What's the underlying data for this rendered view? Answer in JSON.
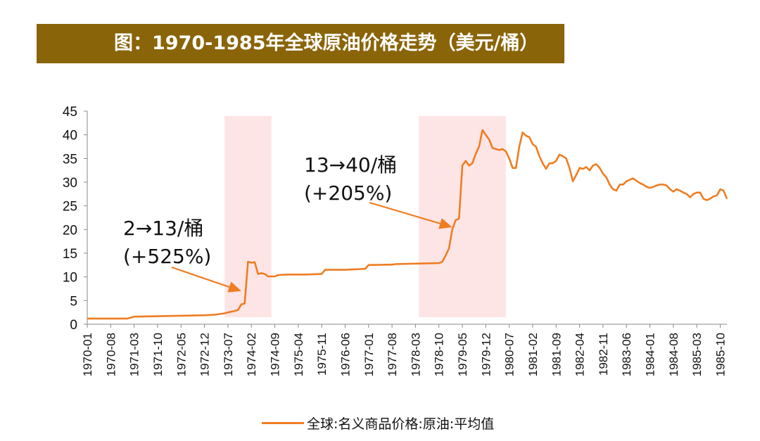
{
  "title": "图：1970-1985年全球原油价格走势（美元/桶）",
  "colors": {
    "banner": "#8a6408",
    "line": "#ef7d22",
    "shade": "#fde5e6",
    "arrow": "#ef7d22"
  },
  "chart_data": {
    "type": "line",
    "title": "图：1970-1985年全球原油价格走势（美元/桶）",
    "xlabel": "",
    "ylabel": "",
    "ylim": [
      0,
      45
    ],
    "yticks": [
      0,
      5,
      10,
      15,
      20,
      25,
      30,
      35,
      40,
      45
    ],
    "xrange": [
      "1970-01",
      "1985-12"
    ],
    "xticks": [
      "1970-01",
      "1970-08",
      "1971-03",
      "1971-10",
      "1972-05",
      "1972-12",
      "1973-07",
      "1974-02",
      "1974-09",
      "1975-04",
      "1975-11",
      "1976-06",
      "1977-01",
      "1977-08",
      "1978-03",
      "1978-10",
      "1979-05",
      "1979-12",
      "1980-07",
      "1981-02",
      "1981-09",
      "1982-04",
      "1982-11",
      "1983-06",
      "1984-01",
      "1984-08",
      "1985-03",
      "1985-10"
    ],
    "legend": "bottom-center",
    "grid": false,
    "series": [
      {
        "name": "全球:名义商品价格:原油:平均值",
        "color": "#ef7d22",
        "points": [
          [
            "1970-01",
            1.2
          ],
          [
            "1971-01",
            1.2
          ],
          [
            "1971-03",
            1.6
          ],
          [
            "1971-10",
            1.7
          ],
          [
            "1972-05",
            1.8
          ],
          [
            "1972-12",
            1.9
          ],
          [
            "1973-03",
            2.0
          ],
          [
            "1973-06",
            2.3
          ],
          [
            "1973-07",
            2.5
          ],
          [
            "1973-09",
            2.8
          ],
          [
            "1973-10",
            3.0
          ],
          [
            "1973-11",
            4.2
          ],
          [
            "1973-12",
            4.4
          ],
          [
            "1974-01",
            13.2
          ],
          [
            "1974-02",
            13.0
          ],
          [
            "1974-03",
            13.1
          ],
          [
            "1974-04",
            10.6
          ],
          [
            "1974-05",
            10.8
          ],
          [
            "1974-06",
            10.6
          ],
          [
            "1974-07",
            10.1
          ],
          [
            "1974-09",
            10.1
          ],
          [
            "1974-10",
            10.4
          ],
          [
            "1975-01",
            10.5
          ],
          [
            "1975-06",
            10.5
          ],
          [
            "1975-11",
            10.6
          ],
          [
            "1975-12",
            11.5
          ],
          [
            "1976-06",
            11.5
          ],
          [
            "1976-12",
            11.7
          ],
          [
            "1977-01",
            12.5
          ],
          [
            "1977-08",
            12.6
          ],
          [
            "1977-09",
            12.7
          ],
          [
            "1978-03",
            12.8
          ],
          [
            "1978-10",
            12.9
          ],
          [
            "1978-11",
            13.2
          ],
          [
            "1978-12",
            14.5
          ],
          [
            "1979-01",
            16.0
          ],
          [
            "1979-02",
            20.0
          ],
          [
            "1979-03",
            22.0
          ],
          [
            "1979-04",
            22.3
          ],
          [
            "1979-05",
            33.5
          ],
          [
            "1979-06",
            34.5
          ],
          [
            "1979-07",
            33.5
          ],
          [
            "1979-08",
            34.0
          ],
          [
            "1979-09",
            36.0
          ],
          [
            "1979-10",
            37.5
          ],
          [
            "1979-11",
            41.0
          ],
          [
            "1979-12",
            40.0
          ],
          [
            "1980-01",
            39.0
          ],
          [
            "1980-02",
            37.2
          ],
          [
            "1980-03",
            37.0
          ],
          [
            "1980-04",
            36.8
          ],
          [
            "1980-05",
            37.0
          ],
          [
            "1980-06",
            36.5
          ],
          [
            "1980-07",
            35.0
          ],
          [
            "1980-08",
            33.0
          ],
          [
            "1980-09",
            33.0
          ],
          [
            "1980-10",
            37.5
          ],
          [
            "1980-11",
            40.5
          ],
          [
            "1980-12",
            39.8
          ],
          [
            "1981-01",
            39.5
          ],
          [
            "1981-02",
            38.0
          ],
          [
            "1981-03",
            37.5
          ],
          [
            "1981-04",
            35.5
          ],
          [
            "1981-05",
            34.0
          ],
          [
            "1981-06",
            32.8
          ],
          [
            "1981-07",
            34.0
          ],
          [
            "1981-08",
            34.0
          ],
          [
            "1981-09",
            34.5
          ],
          [
            "1981-10",
            35.8
          ],
          [
            "1981-11",
            35.5
          ],
          [
            "1981-12",
            35.0
          ],
          [
            "1982-01",
            33.0
          ],
          [
            "1982-02",
            30.2
          ],
          [
            "1982-03",
            31.5
          ],
          [
            "1982-04",
            33.0
          ],
          [
            "1982-05",
            32.8
          ],
          [
            "1982-06",
            33.2
          ],
          [
            "1982-07",
            32.5
          ],
          [
            "1982-08",
            33.5
          ],
          [
            "1982-09",
            33.8
          ],
          [
            "1982-10",
            33.0
          ],
          [
            "1982-11",
            31.8
          ],
          [
            "1982-12",
            31.0
          ],
          [
            "1983-01",
            29.5
          ],
          [
            "1983-02",
            28.5
          ],
          [
            "1983-03",
            28.2
          ],
          [
            "1983-04",
            29.5
          ],
          [
            "1983-05",
            29.5
          ],
          [
            "1983-06",
            30.2
          ],
          [
            "1983-07",
            30.5
          ],
          [
            "1983-08",
            30.8
          ],
          [
            "1983-09",
            30.3
          ],
          [
            "1983-10",
            29.8
          ],
          [
            "1983-11",
            29.5
          ],
          [
            "1983-12",
            29.0
          ],
          [
            "1984-01",
            28.8
          ],
          [
            "1984-02",
            29.0
          ],
          [
            "1984-03",
            29.3
          ],
          [
            "1984-04",
            29.5
          ],
          [
            "1984-05",
            29.5
          ],
          [
            "1984-06",
            29.3
          ],
          [
            "1984-07",
            28.5
          ],
          [
            "1984-08",
            28.0
          ],
          [
            "1984-09",
            28.5
          ],
          [
            "1984-10",
            28.2
          ],
          [
            "1984-11",
            27.8
          ],
          [
            "1984-12",
            27.5
          ],
          [
            "1985-01",
            26.8
          ],
          [
            "1985-02",
            27.5
          ],
          [
            "1985-03",
            27.8
          ],
          [
            "1985-04",
            27.8
          ],
          [
            "1985-05",
            26.5
          ],
          [
            "1985-06",
            26.2
          ],
          [
            "1985-07",
            26.5
          ],
          [
            "1985-08",
            27.0
          ],
          [
            "1985-09",
            27.2
          ],
          [
            "1985-10",
            28.5
          ],
          [
            "1985-11",
            28.2
          ],
          [
            "1985-12",
            26.5
          ]
        ]
      }
    ],
    "shaded_periods": [
      {
        "start": "1973-06",
        "end": "1974-08"
      },
      {
        "start": "1978-04",
        "end": "1980-06"
      }
    ],
    "annotations": [
      {
        "lines": [
          "2→13/桶",
          "(+525%)"
        ],
        "arrow_to": [
          "1973-11",
          7
        ]
      },
      {
        "lines": [
          "13→40/桶",
          "(+205%)"
        ],
        "arrow_to": [
          "1979-02",
          20.5
        ]
      }
    ]
  }
}
